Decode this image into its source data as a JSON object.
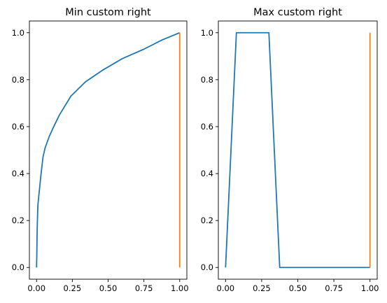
{
  "chart_data": [
    {
      "type": "line",
      "title": "Min custom right",
      "xlabel": "",
      "ylabel": "",
      "xlim": [
        -0.05,
        1.05
      ],
      "ylim": [
        -0.05,
        1.05
      ],
      "xticks": [
        0.0,
        0.25,
        0.5,
        0.75,
        1.0
      ],
      "xtick_labels": [
        "0.00",
        "0.25",
        "0.50",
        "0.75",
        "1.00"
      ],
      "yticks": [
        0.0,
        0.2,
        0.4,
        0.6,
        0.8,
        1.0
      ],
      "ytick_labels": [
        "0.0",
        "0.2",
        "0.4",
        "0.6",
        "0.8",
        "1.0"
      ],
      "grid": false,
      "series": [
        {
          "color": "#1f77b4",
          "x": [
            0.0,
            0.002,
            0.004,
            0.006,
            0.008,
            0.01,
            0.015,
            0.02,
            0.03,
            0.045,
            0.06,
            0.09,
            0.12,
            0.16,
            0.24,
            0.34,
            0.46,
            0.6,
            0.75,
            0.88,
            1.0
          ],
          "y": [
            0.0,
            0.06,
            0.15,
            0.2,
            0.24,
            0.27,
            0.3,
            0.33,
            0.39,
            0.47,
            0.51,
            0.56,
            0.6,
            0.65,
            0.73,
            0.79,
            0.84,
            0.89,
            0.93,
            0.97,
            1.0
          ]
        },
        {
          "color": "#ff7f0e",
          "x": [
            1.0,
            1.0
          ],
          "y": [
            0.0,
            1.0
          ]
        }
      ]
    },
    {
      "type": "line",
      "title": "Max custom right",
      "xlabel": "",
      "ylabel": "",
      "xlim": [
        -0.05,
        1.05
      ],
      "ylim": [
        -0.05,
        1.05
      ],
      "xticks": [
        0.0,
        0.25,
        0.5,
        0.75,
        1.0
      ],
      "xtick_labels": [
        "0.00",
        "0.25",
        "0.50",
        "0.75",
        "1.00"
      ],
      "yticks": [
        0.0,
        0.2,
        0.4,
        0.6,
        0.8,
        1.0
      ],
      "ytick_labels": [
        "0.0",
        "0.2",
        "0.4",
        "0.6",
        "0.8",
        "1.0"
      ],
      "grid": false,
      "series": [
        {
          "color": "#1f77b4",
          "x": [
            0.0,
            0.075,
            0.3,
            0.375,
            1.0
          ],
          "y": [
            0.0,
            1.0,
            1.0,
            0.0,
            0.0
          ]
        },
        {
          "color": "#ff7f0e",
          "x": [
            1.0,
            1.0
          ],
          "y": [
            0.0,
            1.0
          ]
        }
      ]
    }
  ]
}
